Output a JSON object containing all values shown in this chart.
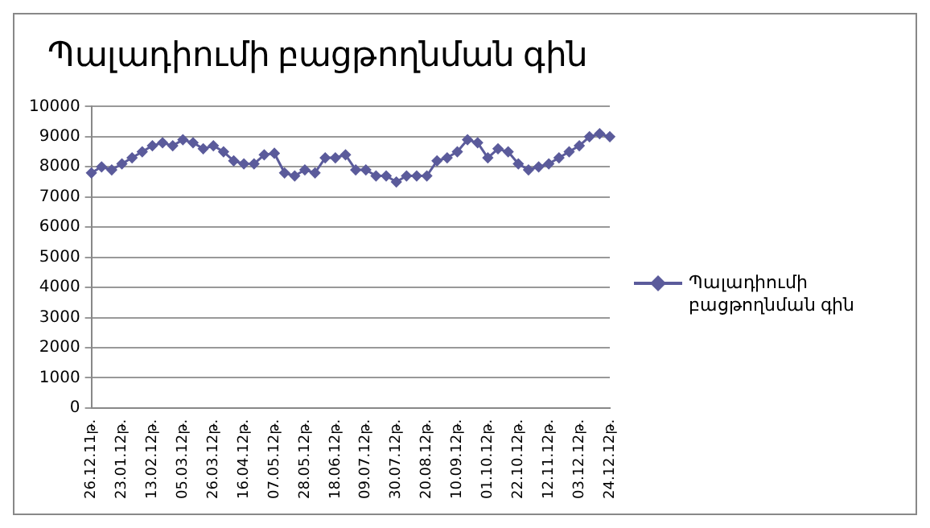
{
  "chart_data": {
    "type": "line",
    "title": "Պալադիումի բացթողնման գին",
    "categories": [
      "26.12.11թ.",
      null,
      null,
      "23.01.12թ.",
      null,
      null,
      "13.02.12թ.",
      null,
      null,
      "05.03.12թ.",
      null,
      null,
      "26.03.12թ.",
      null,
      null,
      "16.04.12թ.",
      null,
      null,
      "07.05.12թ.",
      null,
      null,
      "28.05.12թ.",
      null,
      null,
      "18.06.12թ.",
      null,
      null,
      "09.07.12թ.",
      null,
      null,
      "30.07.12թ.",
      null,
      null,
      "20.08.12թ.",
      null,
      null,
      "10.09.12թ.",
      null,
      null,
      "01.10.12թ.",
      null,
      null,
      "22.10.12թ.",
      null,
      null,
      "12.11.12թ.",
      null,
      null,
      "03.12.12թ.",
      null,
      null,
      "24.12.12թ."
    ],
    "series": [
      {
        "name": "Պալադիումի բացթողնման գին",
        "color": "#5b5b9b",
        "values": [
          7800,
          8000,
          7900,
          8100,
          8300,
          8500,
          8700,
          8800,
          8700,
          8900,
          8800,
          8600,
          8700,
          8500,
          8200,
          8100,
          8100,
          8400,
          8450,
          7800,
          7700,
          7900,
          7800,
          8300,
          8300,
          8400,
          7900,
          7900,
          7700,
          7700,
          7500,
          7700,
          7700,
          7700,
          8200,
          8300,
          8500,
          8900,
          8800,
          8300,
          8600,
          8500,
          8100,
          7900,
          8000,
          8100,
          8300,
          8500,
          8700,
          9000,
          9100,
          9000
        ]
      }
    ],
    "ylim": [
      0,
      10000
    ],
    "yticks": [
      0,
      1000,
      2000,
      3000,
      4000,
      5000,
      6000,
      7000,
      8000,
      9000,
      10000
    ],
    "grid": "y",
    "legend": "right",
    "marker": "diamond",
    "line_style": "solid"
  }
}
